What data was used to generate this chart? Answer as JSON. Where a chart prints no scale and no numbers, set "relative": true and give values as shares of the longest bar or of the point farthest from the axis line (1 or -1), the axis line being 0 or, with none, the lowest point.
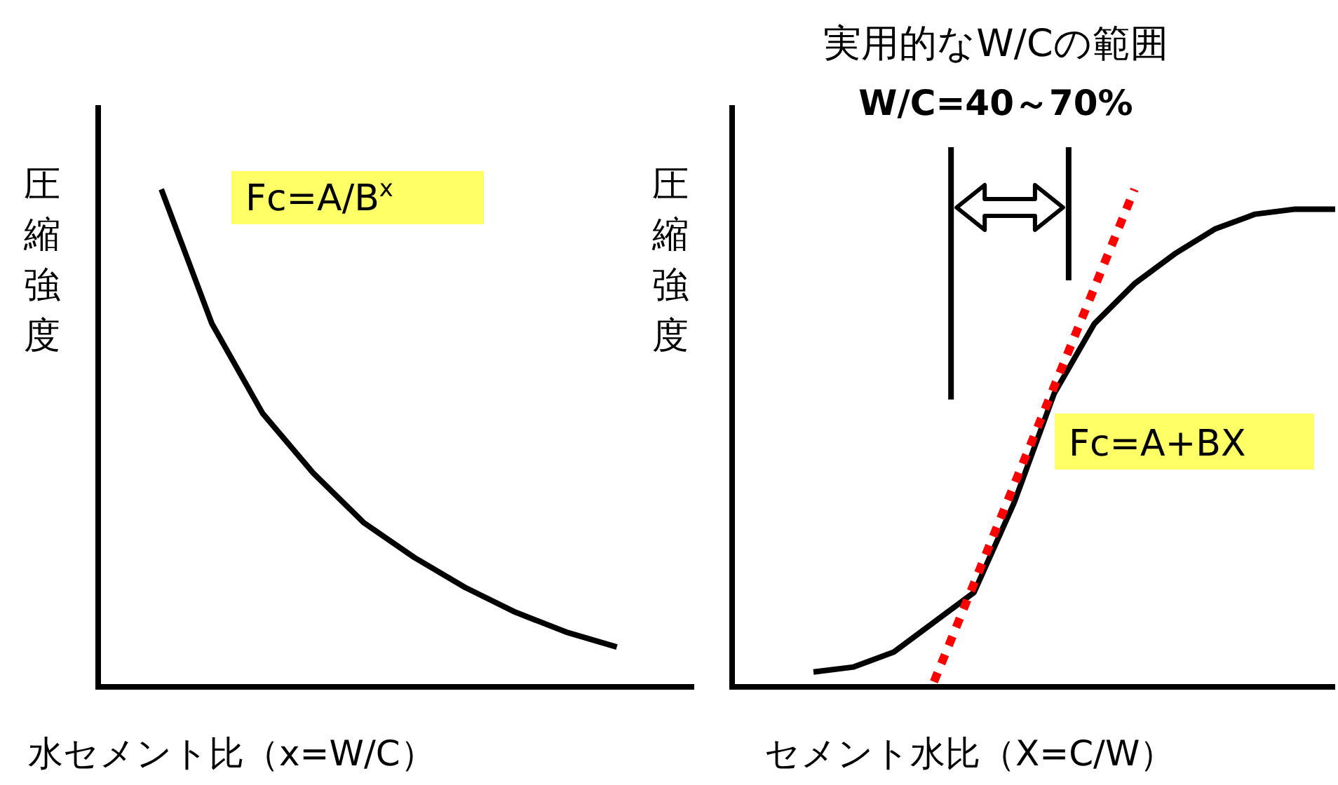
{
  "chart_data": [
    {
      "type": "line",
      "relative": true,
      "ylabel": "圧縮強度",
      "xlabel": "水セメント比（x=W/C）",
      "annotations": [
        "Fc=A/B$^{x}$"
      ],
      "categories": [
        null,
        null,
        null,
        null,
        null,
        null,
        null,
        null,
        null,
        null
      ],
      "series": [
        {
          "color": "#000000",
          "values": [
            1,
            0.73,
            0.55,
            0.43,
            0.33,
            0.26,
            0.2,
            0.15,
            0.11,
            0.08
          ]
        }
      ]
    },
    {
      "type": "line",
      "relative": true,
      "title": "実用的なW/Cの範囲",
      "subtitle": "W/C=40～70%",
      "ylabel": "圧縮強度",
      "xlabel": "セメント水比（X=C/W）",
      "annotations": [
        "Fc=A+BX"
      ],
      "categories": [
        null,
        null,
        null,
        null,
        null,
        null,
        null,
        null,
        null,
        null,
        null,
        null,
        null,
        null
      ],
      "series": [
        {
          "color": "#000000",
          "values": [
            0.03,
            0.04,
            0.07,
            0.13,
            0.19,
            0.37,
            0.59,
            0.73,
            0.81,
            0.87,
            0.92,
            0.95,
            0.96,
            0.96
          ]
        },
        {
          "type": "line",
          "color": "#ff0000",
          "line_style": "dotted",
          "values": [
            null,
            null,
            null,
            0.01,
            null,
            null,
            null,
            null,
            1,
            null,
            null,
            null,
            null,
            null
          ]
        }
      ]
    }
  ]
}
